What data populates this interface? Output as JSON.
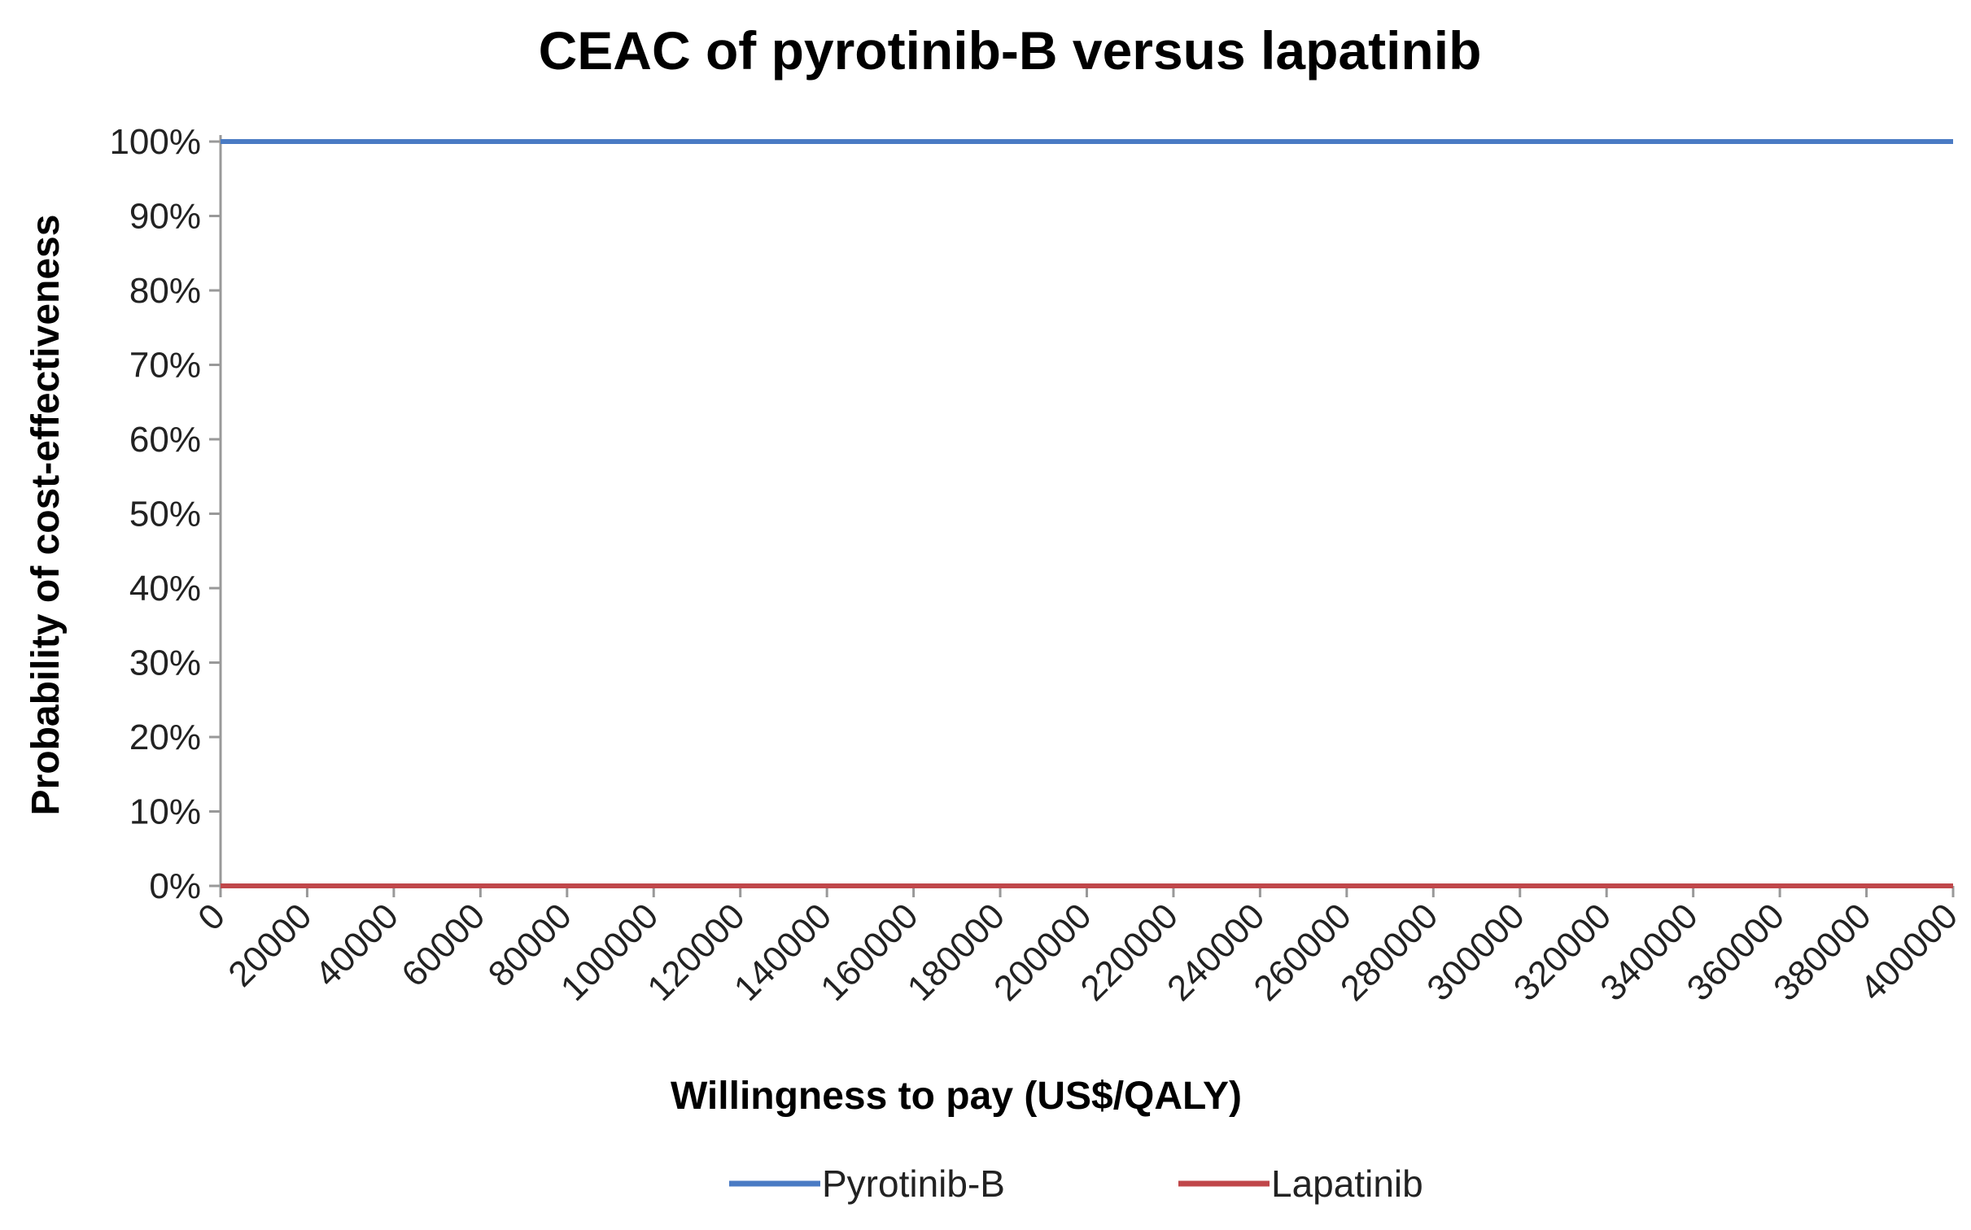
{
  "chart_data": {
    "type": "line",
    "title": "CEAC of pyrotinib-B versus lapatinib",
    "xlabel": "Willingness to pay (US$/QALY)",
    "ylabel": "Probability of cost-effectiveness",
    "x": [
      0,
      20000,
      40000,
      60000,
      80000,
      100000,
      120000,
      140000,
      160000,
      180000,
      200000,
      220000,
      240000,
      260000,
      280000,
      300000,
      320000,
      340000,
      360000,
      380000,
      400000
    ],
    "x_tick_labels": [
      "0",
      "20000",
      "40000",
      "60000",
      "80000",
      "100000",
      "120000",
      "140000",
      "160000",
      "180000",
      "200000",
      "220000",
      "240000",
      "260000",
      "280000",
      "300000",
      "320000",
      "340000",
      "360000",
      "380000",
      "400000"
    ],
    "xlim": [
      0,
      400000
    ],
    "ylim": [
      0,
      100
    ],
    "y_ticks": [
      0,
      10,
      20,
      30,
      40,
      50,
      60,
      70,
      80,
      90,
      100
    ],
    "y_tick_labels": [
      "0%",
      "10%",
      "20%",
      "30%",
      "40%",
      "50%",
      "60%",
      "70%",
      "80%",
      "90%",
      "100%"
    ],
    "grid": false,
    "legend_position": "bottom",
    "series": [
      {
        "name": "Pyrotinib-B",
        "color": "#4a7bc4",
        "values": [
          100,
          100,
          100,
          100,
          100,
          100,
          100,
          100,
          100,
          100,
          100,
          100,
          100,
          100,
          100,
          100,
          100,
          100,
          100,
          100,
          100
        ]
      },
      {
        "name": "Lapatinib",
        "color": "#c0474a",
        "values": [
          0,
          0,
          0,
          0,
          0,
          0,
          0,
          0,
          0,
          0,
          0,
          0,
          0,
          0,
          0,
          0,
          0,
          0,
          0,
          0,
          0
        ]
      }
    ]
  }
}
